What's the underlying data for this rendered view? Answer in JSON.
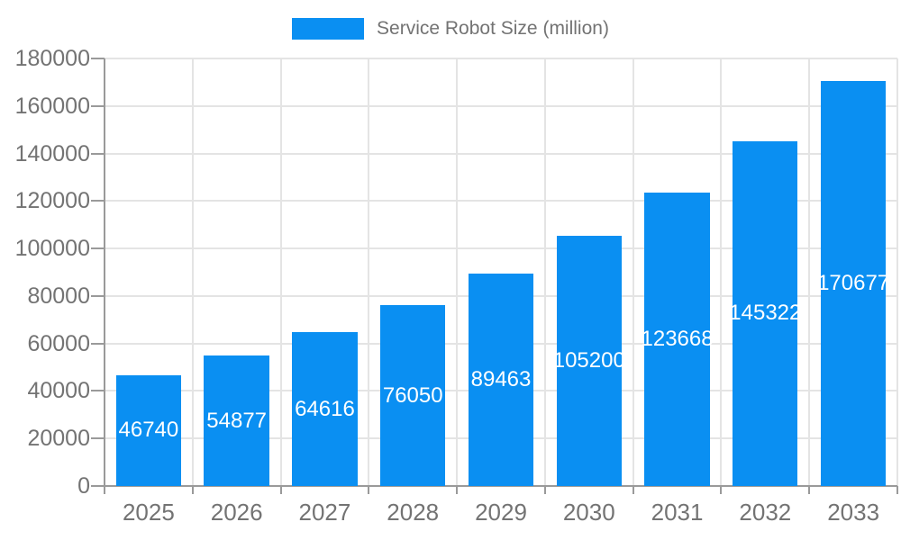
{
  "legend": {
    "label": "Service Robot Size (million)"
  },
  "chart_data": {
    "type": "bar",
    "title": "Service Robot Size (million)",
    "series_name": "Service Robot Size (million)",
    "categories": [
      "2025",
      "2026",
      "2027",
      "2028",
      "2029",
      "2030",
      "2031",
      "2032",
      "2033"
    ],
    "values": [
      46740,
      54877,
      64616,
      76050,
      89463,
      105200,
      123668,
      145322,
      170677
    ],
    "xlabel": "",
    "ylabel": "",
    "ylim": [
      0,
      180000
    ],
    "ytick_step": 20000,
    "yticks": [
      "0",
      "20000",
      "40000",
      "60000",
      "80000",
      "100000",
      "120000",
      "140000",
      "160000",
      "180000"
    ],
    "grid": true,
    "legend_position": "top",
    "bar_labels_visible": true,
    "bar_label_color": "#ffffff"
  },
  "colors": {
    "bar": "#0a8ff2",
    "grid": "#e4e4e4",
    "axis": "#9a9a9a",
    "text": "#737373",
    "bar_label": "#ffffff",
    "background": "#ffffff"
  }
}
